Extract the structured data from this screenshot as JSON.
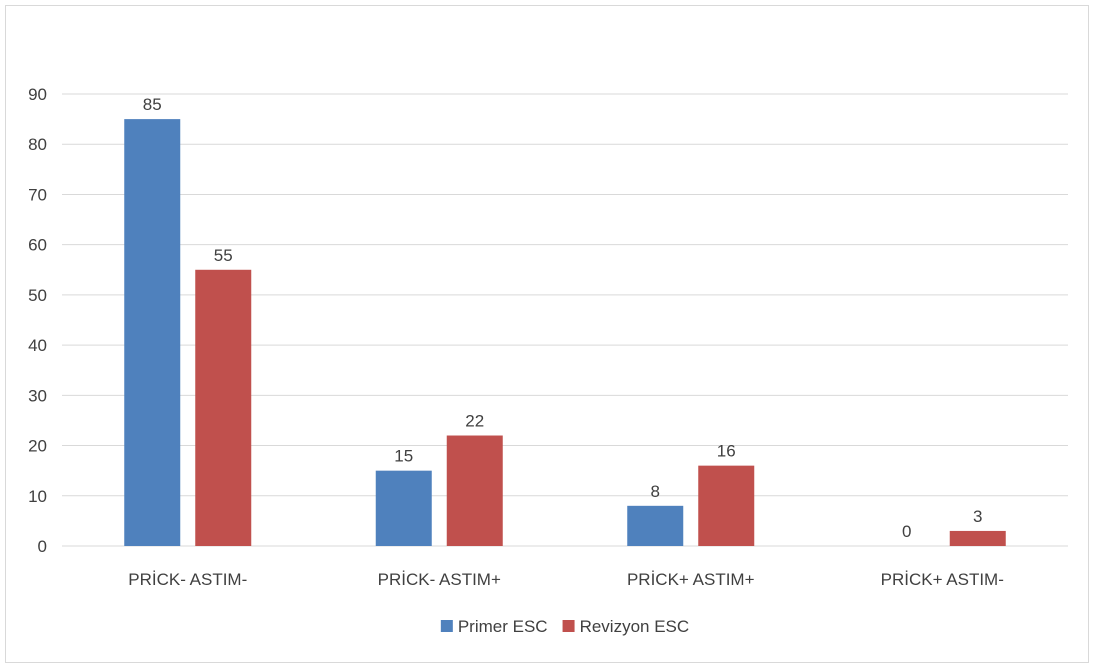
{
  "chart_data": {
    "type": "bar",
    "title": "",
    "xlabel": "",
    "ylabel": "",
    "ylim": [
      0,
      90
    ],
    "ytick_step": 10,
    "grid": true,
    "legend_position": "bottom",
    "categories": [
      "PRİCK- ASTIM-",
      "PRİCK- ASTIM+",
      "PRİCK+ ASTIM+",
      "PRİCK+ ASTIM-"
    ],
    "series": [
      {
        "name": "Primer ESC",
        "color": "#4f81bd",
        "values": [
          85,
          15,
          8,
          0
        ]
      },
      {
        "name": "Revizyon ESC",
        "color": "#c0504d",
        "values": [
          55,
          22,
          16,
          3
        ]
      }
    ]
  }
}
